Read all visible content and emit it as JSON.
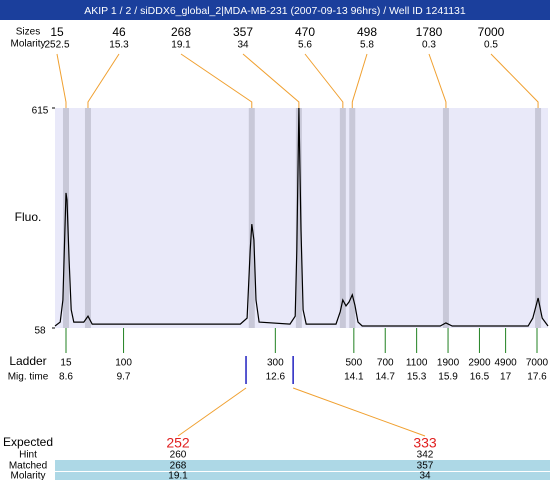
{
  "header": {
    "title": "AKIP 1 / 2 / siDDX6_global_2|MDA-MB-231 (2007-09-13 96hrs) / Well ID 1241131"
  },
  "chart_data": {
    "type": "electropherogram",
    "y_label": "Fluo.",
    "ylim": [
      58,
      615
    ],
    "yticks": [
      58,
      615
    ],
    "xlim": [
      8.39,
      17.81
    ],
    "trace": {
      "color": "#000000",
      "x": [
        8.39,
        8.49,
        8.54,
        8.58,
        8.6,
        8.62,
        8.66,
        8.7,
        8.75,
        8.94,
        9.02,
        9.1,
        11.93,
        12.06,
        12.12,
        12.15,
        12.19,
        12.23,
        12.29,
        12.88,
        12.98,
        13.01,
        13.05,
        13.09,
        13.13,
        13.19,
        13.76,
        13.84,
        13.89,
        13.95,
        14.01,
        14.07,
        14.12,
        14.18,
        14.26,
        15.75,
        15.86,
        15.98,
        17.43,
        17.52,
        17.62,
        17.7,
        17.81
      ],
      "y": [
        63,
        73,
        129,
        306,
        400,
        382,
        230,
        104,
        73,
        73,
        88,
        68,
        68,
        83,
        255,
        321,
        281,
        129,
        73,
        68,
        88,
        255,
        615,
        306,
        104,
        68,
        68,
        99,
        129,
        114,
        124,
        142,
        116,
        73,
        63,
        63,
        71,
        63,
        63,
        83,
        134,
        83,
        63
      ]
    },
    "peaks": {
      "row_labels": [
        "Sizes",
        "Molarity"
      ],
      "sizes": [
        15,
        46,
        268,
        357,
        470,
        498,
        1780,
        7000
      ],
      "molarity": [
        252.5,
        15.3,
        19.1,
        34,
        5.6,
        5.8,
        0.3,
        0.5
      ],
      "times": [
        8.6,
        9.02,
        12.15,
        13.05,
        13.89,
        14.07,
        15.86,
        17.62
      ],
      "color": "#f0a030",
      "band_color": "#c8c8d8"
    },
    "ladder": {
      "row_labels": [
        "Ladder",
        "Mig. time"
      ],
      "sizes": [
        15,
        100,
        300,
        500,
        700,
        1100,
        1900,
        2900,
        4900,
        7000
      ],
      "times": [
        8.6,
        9.7,
        12.6,
        14.1,
        14.7,
        15.3,
        15.9,
        16.5,
        17,
        17.6
      ],
      "color": "#208020"
    },
    "expected": {
      "row_labels": [
        "Expected",
        "Hint",
        "Matched",
        "Molarity"
      ],
      "values": [
        252,
        333
      ],
      "times": [
        12.04,
        12.94
      ],
      "hint": [
        260,
        342
      ],
      "matched": [
        268,
        357
      ],
      "molarity": [
        19.1,
        34
      ],
      "color": "#e02020",
      "marker_color": "#2020c0"
    }
  }
}
